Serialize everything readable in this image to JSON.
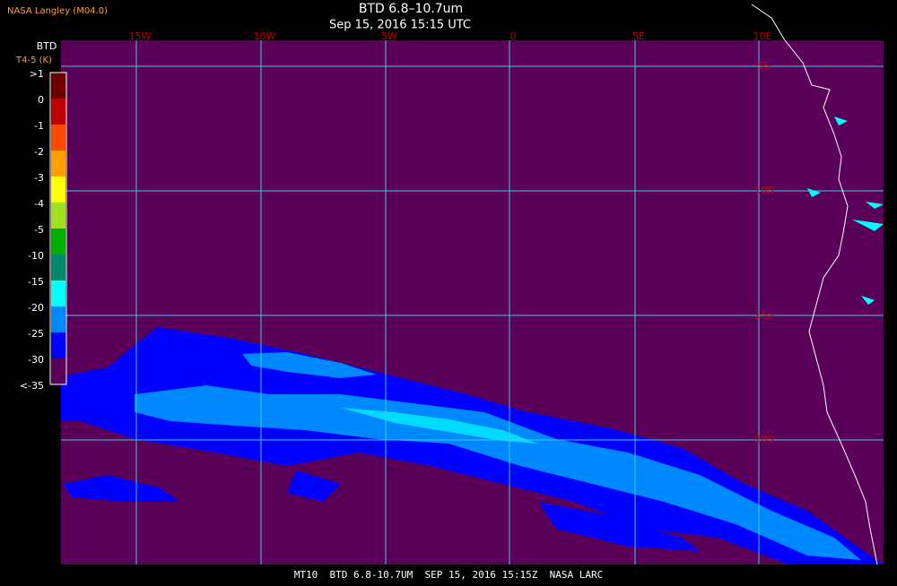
{
  "header": {
    "source": "NASA Langley (M04.0)",
    "title": "BTD 6.8–10.7um",
    "datetime": "Sep 15, 2016 15:15 UTC"
  },
  "map": {
    "longitude_labels": [
      "15W",
      "10W",
      "5W",
      "0",
      "5E",
      "10E"
    ],
    "latitude_labels": [
      "5S",
      "10S",
      "15S",
      "20S"
    ],
    "background_color": "#5a0058",
    "grid_color": "#40c8e8"
  },
  "legend": {
    "title": "BTD",
    "units": "T4-5 (K)",
    "entries": [
      {
        "label": ">1",
        "color": "#6b0000"
      },
      {
        "label": "0",
        "color": "#c00000"
      },
      {
        "label": "-1",
        "color": "#ff4800"
      },
      {
        "label": "-2",
        "color": "#ffa000"
      },
      {
        "label": "-3",
        "color": "#ffff00"
      },
      {
        "label": "-4",
        "color": "#a0e020"
      },
      {
        "label": "-5",
        "color": "#00b000"
      },
      {
        "label": "-10",
        "color": "#00886a"
      },
      {
        "label": "-15",
        "color": "#00ffff"
      },
      {
        "label": "-20",
        "color": "#0088ff"
      },
      {
        "label": "-25",
        "color": "#0000ff"
      },
      {
        "label": "-30",
        "color": "#5a0058"
      },
      {
        "label": "<-35",
        "color": null
      }
    ]
  },
  "footer": {
    "caption": "MT10  BTD 6.8-10.7UM  SEP 15, 2016 15:15Z  NASA LARC"
  }
}
